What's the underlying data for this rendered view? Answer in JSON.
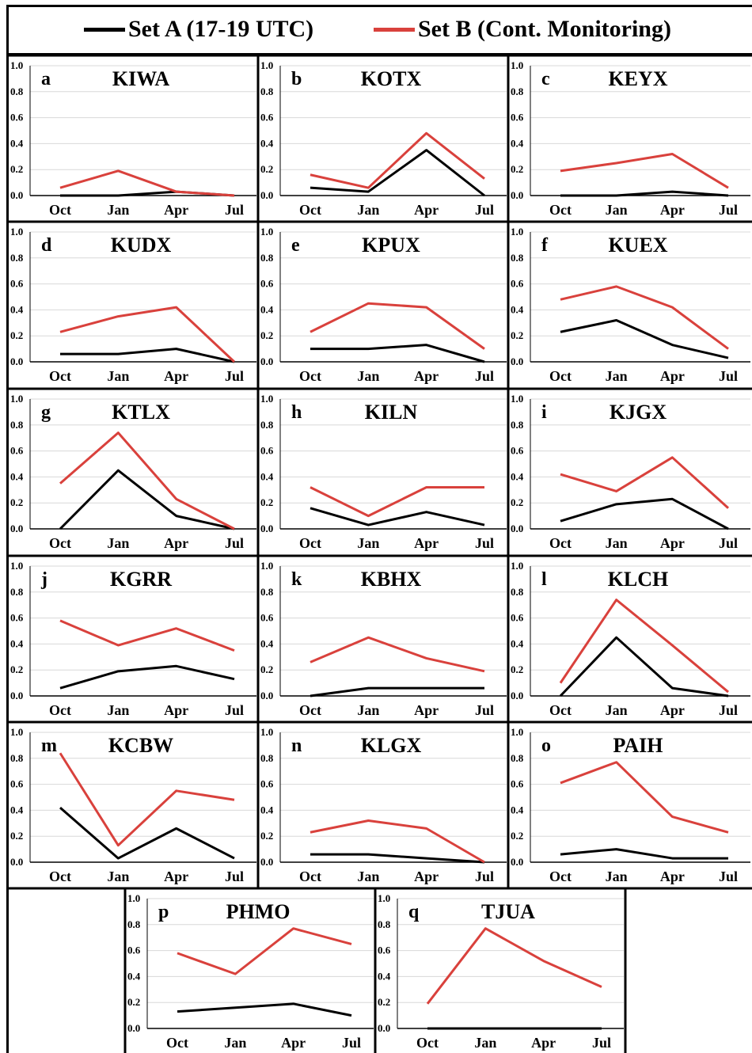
{
  "legend": {
    "set_a": "Set A (17-19 UTC)",
    "set_b": "Set B (Cont. Monitoring)"
  },
  "colors": {
    "set_a": "#000000",
    "set_b": "#d9413c"
  },
  "chart_data": [
    {
      "letter": "a",
      "title": "KIWA",
      "type": "line",
      "categories": [
        "Oct",
        "Jan",
        "Apr",
        "Jul"
      ],
      "ylim": [
        0,
        1.0
      ],
      "yticks": [
        "0.0",
        "0.2",
        "0.4",
        "0.6",
        "0.8",
        "1.0"
      ],
      "series": [
        {
          "values": [
            0.0,
            0.0,
            0.03,
            0.0
          ]
        },
        {
          "values": [
            0.06,
            0.19,
            0.03,
            0.0
          ]
        }
      ]
    },
    {
      "letter": "b",
      "title": "KOTX",
      "type": "line",
      "categories": [
        "Oct",
        "Jan",
        "Apr",
        "Jul"
      ],
      "ylim": [
        0,
        1.0
      ],
      "yticks": [
        "0.0",
        "0.2",
        "0.4",
        "0.6",
        "0.8",
        "1.0"
      ],
      "series": [
        {
          "values": [
            0.06,
            0.03,
            0.35,
            0.0
          ]
        },
        {
          "values": [
            0.16,
            0.06,
            0.48,
            0.13
          ]
        }
      ]
    },
    {
      "letter": "c",
      "title": "KEYX",
      "type": "line",
      "categories": [
        "Oct",
        "Jan",
        "Apr",
        "Jul"
      ],
      "ylim": [
        0,
        1.0
      ],
      "yticks": [
        "0.0",
        "0.2",
        "0.4",
        "0.6",
        "0.8",
        "1.0"
      ],
      "series": [
        {
          "values": [
            0.0,
            0.0,
            0.03,
            0.0
          ]
        },
        {
          "values": [
            0.19,
            0.25,
            0.32,
            0.06
          ]
        }
      ]
    },
    {
      "letter": "d",
      "title": "KUDX",
      "type": "line",
      "categories": [
        "Oct",
        "Jan",
        "Apr",
        "Jul"
      ],
      "ylim": [
        0,
        1.0
      ],
      "yticks": [
        "0.0",
        "0.2",
        "0.4",
        "0.6",
        "0.8",
        "1.0"
      ],
      "series": [
        {
          "values": [
            0.06,
            0.06,
            0.1,
            0.0
          ]
        },
        {
          "values": [
            0.23,
            0.35,
            0.42,
            0.0
          ]
        }
      ]
    },
    {
      "letter": "e",
      "title": "KPUX",
      "type": "line",
      "categories": [
        "Oct",
        "Jan",
        "Apr",
        "Jul"
      ],
      "ylim": [
        0,
        1.0
      ],
      "yticks": [
        "0.0",
        "0.2",
        "0.4",
        "0.6",
        "0.8",
        "1.0"
      ],
      "series": [
        {
          "values": [
            0.1,
            0.1,
            0.13,
            0.0
          ]
        },
        {
          "values": [
            0.23,
            0.45,
            0.42,
            0.1
          ]
        }
      ]
    },
    {
      "letter": "f",
      "title": "KUEX",
      "type": "line",
      "categories": [
        "Oct",
        "Jan",
        "Apr",
        "Jul"
      ],
      "ylim": [
        0,
        1.0
      ],
      "yticks": [
        "0.0",
        "0.2",
        "0.4",
        "0.6",
        "0.8",
        "1.0"
      ],
      "series": [
        {
          "values": [
            0.23,
            0.32,
            0.13,
            0.03
          ]
        },
        {
          "values": [
            0.48,
            0.58,
            0.42,
            0.1
          ]
        }
      ]
    },
    {
      "letter": "g",
      "title": "KTLX",
      "type": "line",
      "categories": [
        "Oct",
        "Jan",
        "Apr",
        "Jul"
      ],
      "ylim": [
        0,
        1.0
      ],
      "yticks": [
        "0.0",
        "0.2",
        "0.4",
        "0.6",
        "0.8",
        "1.0"
      ],
      "series": [
        {
          "values": [
            0.0,
            0.45,
            0.1,
            0.0
          ]
        },
        {
          "values": [
            0.35,
            0.74,
            0.23,
            0.0
          ]
        }
      ]
    },
    {
      "letter": "h",
      "title": "KILN",
      "type": "line",
      "categories": [
        "Oct",
        "Jan",
        "Apr",
        "Jul"
      ],
      "ylim": [
        0,
        1.0
      ],
      "yticks": [
        "0.0",
        "0.2",
        "0.4",
        "0.6",
        "0.8",
        "1.0"
      ],
      "series": [
        {
          "values": [
            0.16,
            0.03,
            0.13,
            0.03
          ]
        },
        {
          "values": [
            0.32,
            0.1,
            0.32,
            0.32
          ]
        }
      ]
    },
    {
      "letter": "i",
      "title": "KJGX",
      "type": "line",
      "categories": [
        "Oct",
        "Jan",
        "Apr",
        "Jul"
      ],
      "ylim": [
        0,
        1.0
      ],
      "yticks": [
        "0.0",
        "0.2",
        "0.4",
        "0.6",
        "0.8",
        "1.0"
      ],
      "series": [
        {
          "values": [
            0.06,
            0.19,
            0.23,
            0.0
          ]
        },
        {
          "values": [
            0.42,
            0.29,
            0.55,
            0.16
          ]
        }
      ]
    },
    {
      "letter": "j",
      "title": "KGRR",
      "type": "line",
      "categories": [
        "Oct",
        "Jan",
        "Apr",
        "Jul"
      ],
      "ylim": [
        0,
        1.0
      ],
      "yticks": [
        "0.0",
        "0.2",
        "0.4",
        "0.6",
        "0.8",
        "1.0"
      ],
      "series": [
        {
          "values": [
            0.06,
            0.19,
            0.23,
            0.13
          ]
        },
        {
          "values": [
            0.58,
            0.39,
            0.52,
            0.35
          ]
        }
      ]
    },
    {
      "letter": "k",
      "title": "KBHX",
      "type": "line",
      "categories": [
        "Oct",
        "Jan",
        "Apr",
        "Jul"
      ],
      "ylim": [
        0,
        1.0
      ],
      "yticks": [
        "0.0",
        "0.2",
        "0.4",
        "0.6",
        "0.8",
        "1.0"
      ],
      "series": [
        {
          "values": [
            0.0,
            0.06,
            0.06,
            0.06
          ]
        },
        {
          "values": [
            0.26,
            0.45,
            0.29,
            0.19
          ]
        }
      ]
    },
    {
      "letter": "l",
      "title": "KLCH",
      "type": "line",
      "categories": [
        "Oct",
        "Jan",
        "Apr",
        "Jul"
      ],
      "ylim": [
        0,
        1.0
      ],
      "yticks": [
        "0.0",
        "0.2",
        "0.4",
        "0.6",
        "0.8",
        "1.0"
      ],
      "series": [
        {
          "values": [
            0.0,
            0.45,
            0.06,
            0.0
          ]
        },
        {
          "values": [
            0.1,
            0.74,
            0.39,
            0.03
          ]
        }
      ]
    },
    {
      "letter": "m",
      "title": "KCBW",
      "type": "line",
      "categories": [
        "Oct",
        "Jan",
        "Apr",
        "Jul"
      ],
      "ylim": [
        0,
        1.0
      ],
      "yticks": [
        "0.0",
        "0.2",
        "0.4",
        "0.6",
        "0.8",
        "1.0"
      ],
      "series": [
        {
          "values": [
            0.42,
            0.03,
            0.26,
            0.03
          ]
        },
        {
          "values": [
            0.84,
            0.13,
            0.55,
            0.48
          ]
        }
      ]
    },
    {
      "letter": "n",
      "title": "KLGX",
      "type": "line",
      "categories": [
        "Oct",
        "Jan",
        "Apr",
        "Jul"
      ],
      "ylim": [
        0,
        1.0
      ],
      "yticks": [
        "0.0",
        "0.2",
        "0.4",
        "0.6",
        "0.8",
        "1.0"
      ],
      "series": [
        {
          "values": [
            0.06,
            0.06,
            0.03,
            0.0
          ]
        },
        {
          "values": [
            0.23,
            0.32,
            0.26,
            0.0
          ]
        }
      ]
    },
    {
      "letter": "o",
      "title": "PAIH",
      "type": "line",
      "categories": [
        "Oct",
        "Jan",
        "Apr",
        "Jul"
      ],
      "ylim": [
        0,
        1.0
      ],
      "yticks": [
        "0.0",
        "0.2",
        "0.4",
        "0.6",
        "0.8",
        "1.0"
      ],
      "series": [
        {
          "values": [
            0.06,
            0.1,
            0.03,
            0.03
          ]
        },
        {
          "values": [
            0.61,
            0.77,
            0.35,
            0.23
          ]
        }
      ]
    },
    {
      "letter": "p",
      "title": "PHMO",
      "type": "line",
      "categories": [
        "Oct",
        "Jan",
        "Apr",
        "Jul"
      ],
      "ylim": [
        0,
        1.0
      ],
      "yticks": [
        "0.0",
        "0.2",
        "0.4",
        "0.6",
        "0.8",
        "1.0"
      ],
      "series": [
        {
          "values": [
            0.13,
            0.16,
            0.19,
            0.1
          ]
        },
        {
          "values": [
            0.58,
            0.42,
            0.77,
            0.65
          ]
        }
      ]
    },
    {
      "letter": "q",
      "title": "TJUA",
      "type": "line",
      "categories": [
        "Oct",
        "Jan",
        "Apr",
        "Jul"
      ],
      "ylim": [
        0,
        1.0
      ],
      "yticks": [
        "0.0",
        "0.2",
        "0.4",
        "0.6",
        "0.8",
        "1.0"
      ],
      "series": [
        {
          "values": [
            0.0,
            0.0,
            0.0,
            0.0
          ]
        },
        {
          "values": [
            0.19,
            0.77,
            0.52,
            0.32
          ]
        }
      ]
    }
  ]
}
